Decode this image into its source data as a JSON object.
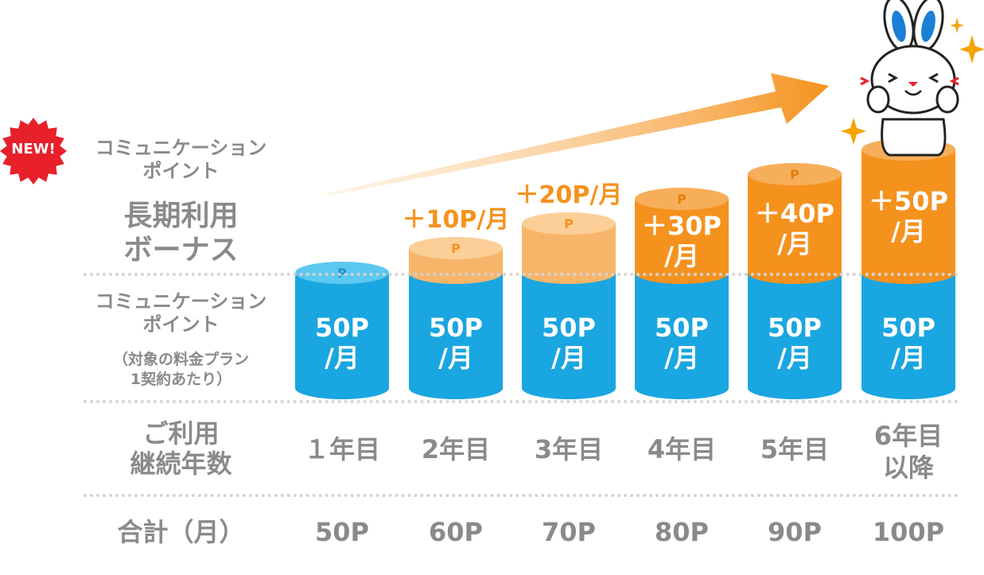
{
  "badge": {
    "label": "NEW!",
    "color": "#e8202a"
  },
  "left_labels": {
    "bonus_sub": "コミュニケーション\nポイント",
    "bonus_title": "長期利用\nボーナス",
    "base_title": "コミュニケーション\nポイント",
    "base_note": "（対象の料金プラン\n1契約あたり）",
    "year_title": "ご利用\n継続年数",
    "total_title": "合計（月）"
  },
  "colors": {
    "base": "#1aa6e0",
    "base_top": "#5bc8f0",
    "bonus_pale": "#f7b56a",
    "bonus": "#f5921e",
    "bonus_top": "#f7ae5a",
    "gray": "#8a8a8a"
  },
  "chart_data": {
    "type": "bar",
    "stacked": true,
    "categories": [
      "１年目",
      "2年目",
      "3年目",
      "4年目",
      "5年目",
      "6年目\n以降"
    ],
    "series": [
      {
        "name": "コミュニケーションポイント",
        "values": [
          50,
          50,
          50,
          50,
          50,
          50
        ],
        "labels": [
          "50P\n/月",
          "50P\n/月",
          "50P\n/月",
          "50P\n/月",
          "50P\n/月",
          "50P\n/月"
        ]
      },
      {
        "name": "長期利用ボーナス",
        "values": [
          0,
          10,
          20,
          30,
          40,
          50
        ],
        "labels": [
          "",
          "＋10P/月",
          "＋20P/月",
          "＋30P\n/月",
          "＋40P\n/月",
          "＋50P\n/月"
        ]
      }
    ],
    "totals": [
      "50P",
      "60P",
      "70P",
      "80P",
      "90P",
      "100P"
    ],
    "coin_mark": "P"
  }
}
